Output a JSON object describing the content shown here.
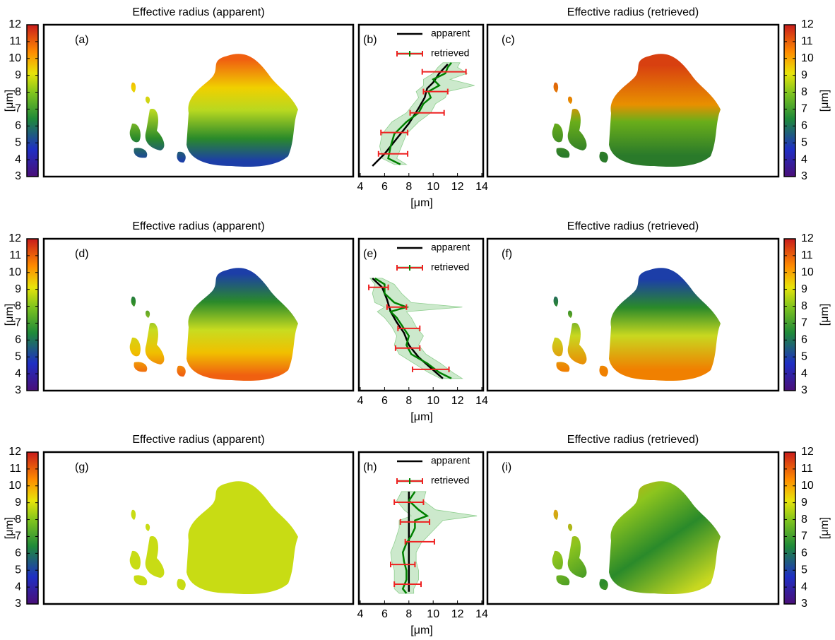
{
  "chart_data": [
    {
      "type": "profile",
      "panel_labels": [
        "(a)",
        "(b)",
        "(c)"
      ],
      "titles": [
        "Effective radius (apparent)",
        "Effective radius (retrieved)"
      ],
      "xlabel": "[μm]",
      "xlim": [
        4,
        14
      ],
      "xticks": [
        4,
        6,
        8,
        10,
        12,
        14
      ],
      "ylim": [
        0,
        100
      ],
      "colorbar": {
        "label": "[μm]",
        "lim": [
          3,
          12
        ],
        "ticks": [
          3,
          4,
          5,
          6,
          7,
          8,
          9,
          10,
          11,
          12
        ]
      },
      "series": [
        {
          "name": "apparent",
          "color": "#000000",
          "y": [
            7,
            15,
            25,
            35,
            45,
            52,
            58,
            62,
            68,
            74
          ],
          "values": [
            5.0,
            6.0,
            7.0,
            8.0,
            8.8,
            9.3,
            9.5,
            10.0,
            10.5,
            11.2
          ]
        },
        {
          "name": "retrieved",
          "color": "#008000",
          "band_color": "#8fcf8f",
          "errorbar_color": "#ee2222",
          "y": [
            8,
            12,
            20,
            28,
            36,
            42,
            48,
            52,
            56,
            60,
            64,
            68,
            72,
            75
          ],
          "values": [
            7.3,
            6.3,
            6.5,
            6.8,
            7.8,
            8.8,
            9.2,
            9.8,
            9.6,
            10.5,
            10.0,
            11.0,
            11.2,
            11.5
          ],
          "band_low": [
            6.8,
            5.8,
            5.6,
            5.8,
            6.6,
            7.8,
            8.4,
            8.8,
            8.6,
            9.2,
            9.2,
            10.0,
            10.4,
            10.8
          ],
          "band_high": [
            7.8,
            7.0,
            7.4,
            7.8,
            8.8,
            9.8,
            10.2,
            11.0,
            11.2,
            13.4,
            11.4,
            12.8,
            12.0,
            12.2
          ],
          "errorbar_y": [
            15,
            29,
            42,
            56,
            69
          ],
          "errorbar_values": [
            6.7,
            6.8,
            9.5,
            10.2,
            10.9
          ],
          "errorbar_errors": [
            1.2,
            1.1,
            1.4,
            1.0,
            1.8
          ]
        }
      ]
    },
    {
      "type": "profile",
      "panel_labels": [
        "(d)",
        "(e)",
        "(f)"
      ],
      "titles": [
        "Effective radius (apparent)",
        "Effective radius (retrieved)"
      ],
      "xlabel": "[μm]",
      "xlim": [
        4,
        14
      ],
      "xticks": [
        4,
        6,
        8,
        10,
        12,
        14
      ],
      "ylim": [
        0,
        100
      ],
      "colorbar": {
        "label": "[μm]",
        "lim": [
          3,
          12
        ],
        "ticks": [
          3,
          4,
          5,
          6,
          7,
          8,
          9,
          10,
          11,
          12
        ]
      },
      "series": [
        {
          "name": "apparent",
          "color": "#000000",
          "y": [
            74,
            68,
            60,
            52,
            45,
            38,
            30,
            22,
            15,
            8
          ],
          "values": [
            5.0,
            5.8,
            6.2,
            6.5,
            7.0,
            7.6,
            8.0,
            8.8,
            9.8,
            10.8
          ]
        },
        {
          "name": "retrieved",
          "color": "#008000",
          "band_color": "#8fcf8f",
          "errorbar_color": "#ee2222",
          "y": [
            74,
            70,
            64,
            58,
            55,
            52,
            48,
            42,
            36,
            30,
            24,
            18,
            12,
            8
          ],
          "values": [
            5.2,
            6.0,
            6.0,
            6.8,
            7.8,
            6.5,
            7.0,
            7.5,
            8.0,
            7.8,
            8.2,
            9.5,
            10.5,
            11.5
          ],
          "band_low": [
            4.8,
            5.2,
            5.0,
            5.2,
            6.0,
            5.4,
            6.0,
            6.6,
            7.0,
            6.8,
            7.2,
            8.4,
            9.6,
            10.6
          ],
          "band_high": [
            5.8,
            6.8,
            7.4,
            8.2,
            12.4,
            7.8,
            8.2,
            8.6,
            9.2,
            8.8,
            9.4,
            10.6,
            11.6,
            12.4
          ],
          "errorbar_y": [
            68,
            55,
            41,
            28,
            14
          ],
          "errorbar_values": [
            5.5,
            7.0,
            8.0,
            7.9,
            9.8
          ],
          "errorbar_errors": [
            0.8,
            0.8,
            0.9,
            1.0,
            1.5
          ]
        }
      ]
    },
    {
      "type": "profile",
      "panel_labels": [
        "(g)",
        "(h)",
        "(i)"
      ],
      "titles": [
        "Effective radius (apparent)",
        "Effective radius (retrieved)"
      ],
      "xlabel": "[μm]",
      "xlim": [
        4,
        14
      ],
      "xticks": [
        4,
        6,
        8,
        10,
        12,
        14
      ],
      "ylim": [
        0,
        100
      ],
      "colorbar": {
        "label": "[μm]",
        "lim": [
          3,
          12
        ],
        "ticks": [
          3,
          4,
          5,
          6,
          7,
          8,
          9,
          10,
          11,
          12
        ]
      },
      "series": [
        {
          "name": "apparent",
          "color": "#000000",
          "y": [
            8,
            74
          ],
          "values": [
            8.0,
            8.0
          ]
        },
        {
          "name": "retrieved",
          "color": "#008000",
          "band_color": "#8fcf8f",
          "errorbar_color": "#ee2222",
          "y": [
            7,
            10,
            16,
            22,
            28,
            34,
            40,
            45,
            50,
            55,
            58,
            62,
            68,
            74
          ],
          "values": [
            7.8,
            7.5,
            7.8,
            7.8,
            7.6,
            7.5,
            7.8,
            8.2,
            8.5,
            8.5,
            9.5,
            8.8,
            8.0,
            8.5
          ],
          "band_low": [
            7.2,
            6.8,
            6.8,
            6.8,
            6.6,
            6.5,
            6.8,
            7.0,
            7.2,
            7.2,
            8.2,
            7.6,
            7.0,
            7.4
          ],
          "band_high": [
            8.4,
            8.4,
            8.8,
            8.8,
            8.6,
            8.6,
            9.0,
            9.6,
            10.2,
            10.8,
            13.6,
            10.2,
            9.2,
            9.4
          ],
          "errorbar_y": [
            67,
            54,
            41,
            26,
            13
          ],
          "errorbar_values": [
            8.0,
            8.5,
            8.9,
            7.5,
            7.9
          ],
          "errorbar_errors": [
            1.2,
            1.2,
            1.2,
            1.0,
            1.1
          ]
        }
      ]
    }
  ]
}
